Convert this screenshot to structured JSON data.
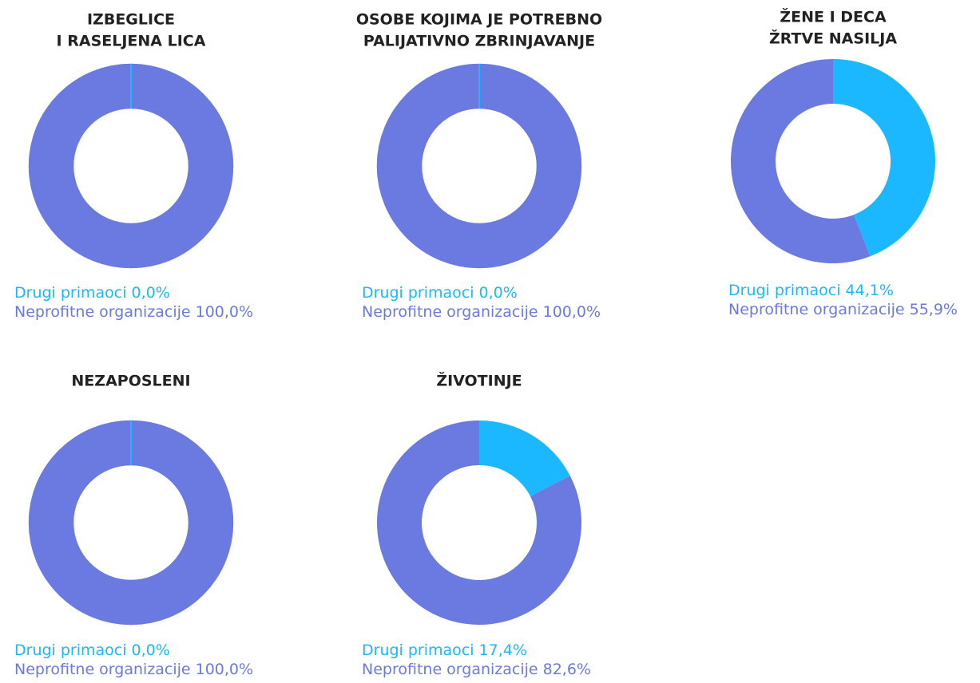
{
  "chart_data": [
    {
      "type": "pie",
      "title": [
        "IZBEGLICE",
        "I RASELJENA LICA"
      ],
      "categories": [
        "Drugi primaoci",
        "Neprofitne organizacije"
      ],
      "values": [
        0,
        100
      ],
      "value_labels": [
        "0,0%",
        "100,0%"
      ],
      "colors": [
        "#1bb8ff",
        "#6b7ae0"
      ]
    },
    {
      "type": "pie",
      "title": [
        "OSOBE KOJIMA JE POTREBNO",
        "PALIJATIVNO ZBRINJAVANJE"
      ],
      "categories": [
        "Drugi primaoci",
        "Neprofitne organizacije"
      ],
      "values": [
        0,
        100
      ],
      "value_labels": [
        "0,0%",
        "100,0%"
      ],
      "colors": [
        "#1bb8ff",
        "#6b7ae0"
      ]
    },
    {
      "type": "pie",
      "title": [
        "ŽENE I DECA",
        "ŽRTVE NASILJA"
      ],
      "categories": [
        "Drugi primaoci",
        "Neprofitne organizacije"
      ],
      "values": [
        44.1,
        55.9
      ],
      "value_labels": [
        "44,1%",
        "55,9%"
      ],
      "colors": [
        "#1bb8ff",
        "#6b7ae0"
      ]
    },
    {
      "type": "pie",
      "title": [
        "NEZAPOSLENI"
      ],
      "categories": [
        "Drugi primaoci",
        "Neprofitne organizacije"
      ],
      "values": [
        0,
        100
      ],
      "value_labels": [
        "0,0%",
        "100,0%"
      ],
      "colors": [
        "#1bb8ff",
        "#6b7ae0"
      ]
    },
    {
      "type": "pie",
      "title": [
        "ŽIVOTINJE"
      ],
      "categories": [
        "Drugi primaoci",
        "Neprofitne organizacije"
      ],
      "values": [
        17.4,
        82.6
      ],
      "value_labels": [
        "17,4%",
        "82,6%"
      ],
      "colors": [
        "#1bb8ff",
        "#6b7ae0"
      ]
    }
  ]
}
